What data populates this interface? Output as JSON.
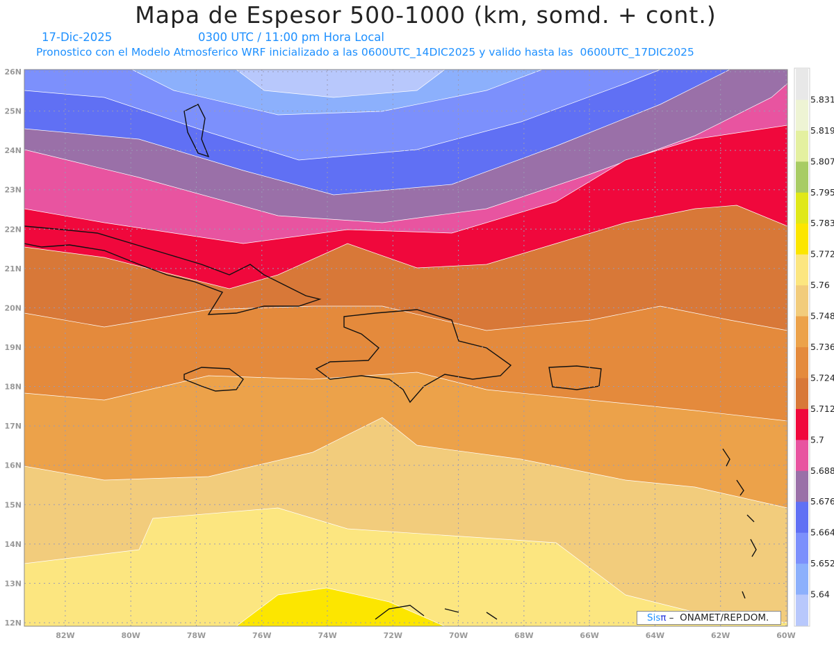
{
  "header": {
    "title": "Mapa de Espesor 500-1000 (km, somd. + cont.)",
    "date": "17-Dic-2025",
    "time": "0300 UTC / 11:00 pm Hora Local",
    "description": "Pronostico con el Modelo Atmosferico WRF inicializado a las 0600UTC_14DIC2025 y valido hasta las  0600UTC_17DIC2025"
  },
  "axes": {
    "lon_labels": [
      "82W",
      "80W",
      "78W",
      "76W",
      "74W",
      "72W",
      "70W",
      "68W",
      "66W",
      "64W",
      "62W",
      "60W"
    ],
    "lat_labels": [
      "26N",
      "25N",
      "24N",
      "23N",
      "22N",
      "21N",
      "20N",
      "19N",
      "18N",
      "17N",
      "16N",
      "15N",
      "14N",
      "13N",
      "12N"
    ]
  },
  "legend": {
    "labels": [
      "5.831",
      "5.819",
      "5.807",
      "5.795",
      "5.783",
      "5.772",
      "5.76",
      "5.748",
      "5.736",
      "5.724",
      "5.712",
      "5.7",
      "5.688",
      "5.676",
      "5.664",
      "5.652",
      "5.64"
    ],
    "colors": [
      "#e8e8e8",
      "#eef4d4",
      "#e4f0a0",
      "#a8cc64",
      "#e0e818",
      "#fce600",
      "#fce680",
      "#f2cc7c",
      "#eca24a",
      "#e48a3c",
      "#d87838",
      "#f0083c",
      "#e854a0",
      "#9a70a8",
      "#6070f4",
      "#7c90fc",
      "#8cb0fc",
      "#b8c8fc"
    ]
  },
  "credit": {
    "brand": "Sis",
    "brand_symbol": "π",
    "text": " –  ONAMET/REP.DOM."
  }
}
